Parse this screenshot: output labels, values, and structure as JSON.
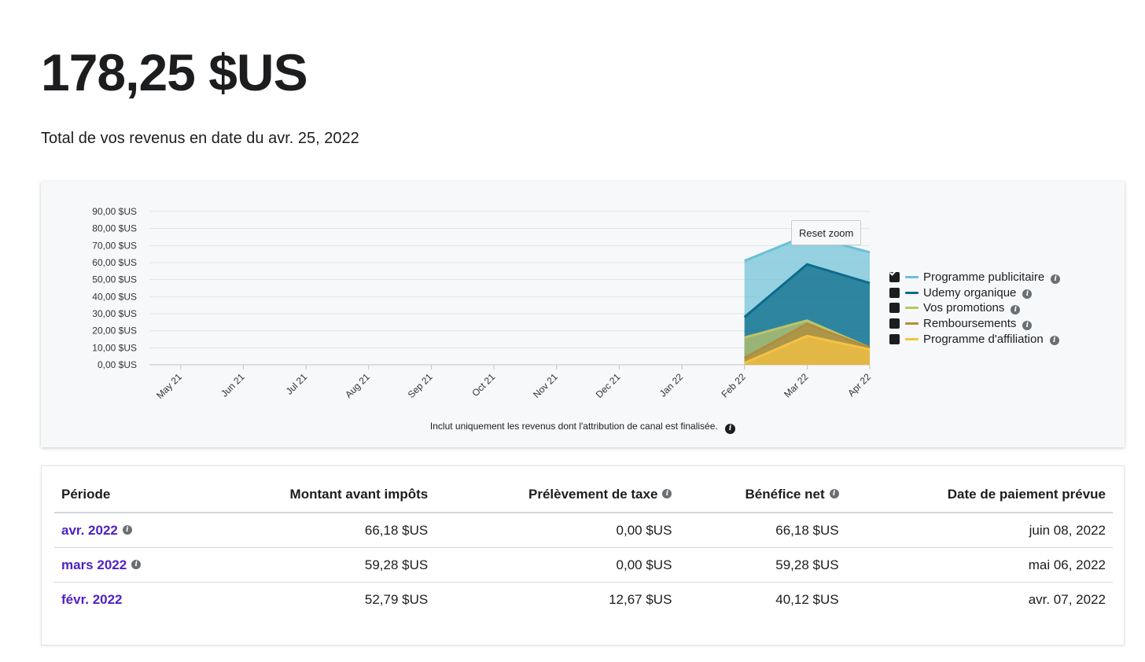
{
  "header": {
    "total": "178,25 $US",
    "subtitle": "Total de vos revenus en date du avr. 25, 2022"
  },
  "chart": {
    "reset_zoom_label": "Reset zoom",
    "footnote": "Inclut uniquement les revenus dont l'attribution de canal est finalisée.",
    "legend": [
      {
        "label": "Programme publicitaire",
        "color": "#6bc0d6"
      },
      {
        "label": "Udemy organique",
        "color": "#0c6b8a"
      },
      {
        "label": "Vos promotions",
        "color": "#bdc46a"
      },
      {
        "label": "Remboursements",
        "color": "#b38c3b"
      },
      {
        "label": "Programme d'affiliation",
        "color": "#f5c242"
      }
    ]
  },
  "chart_data": {
    "type": "area",
    "categories": [
      "May 21",
      "Jun 21",
      "Jul 21",
      "Aug 21",
      "Sep 21",
      "Oct 21",
      "Nov 21",
      "Dec 21",
      "Jan 22",
      "Feb 22",
      "Mar 22",
      "Apr 22"
    ],
    "y_ticks": [
      "0,00 $US",
      "10,00 $US",
      "20,00 $US",
      "30,00 $US",
      "40,00 $US",
      "50,00 $US",
      "60,00 $US",
      "70,00 $US",
      "80,00 $US",
      "90,00 $US"
    ],
    "ylim": [
      0,
      90
    ],
    "grid": true,
    "legend_position": "right",
    "series": [
      {
        "name": "Programme publicitaire",
        "color": "#6bc0d6",
        "values": [
          null,
          null,
          null,
          null,
          null,
          null,
          null,
          null,
          null,
          61,
          76,
          66
        ]
      },
      {
        "name": "Udemy organique",
        "color": "#0c6b8a",
        "values": [
          null,
          null,
          null,
          null,
          null,
          null,
          null,
          null,
          null,
          28,
          59,
          48
        ]
      },
      {
        "name": "Vos promotions",
        "color": "#bdc46a",
        "values": [
          null,
          null,
          null,
          null,
          null,
          null,
          null,
          null,
          null,
          16,
          26,
          10
        ]
      },
      {
        "name": "Remboursements",
        "color": "#b38c3b",
        "values": [
          null,
          null,
          null,
          null,
          null,
          null,
          null,
          null,
          null,
          4,
          24,
          10
        ]
      },
      {
        "name": "Programme d'affiliation",
        "color": "#f5c242",
        "values": [
          null,
          null,
          null,
          null,
          null,
          null,
          null,
          null,
          null,
          1,
          17,
          9
        ]
      }
    ]
  },
  "table": {
    "headers": {
      "period": "Période",
      "gross": "Montant avant impôts",
      "tax": "Prélèvement de taxe",
      "net": "Bénéfice net",
      "date": "Date de paiement prévue"
    },
    "rows": [
      {
        "period": "avr. 2022",
        "gross": "66,18 $US",
        "tax": "0,00 $US",
        "net": "66,18 $US",
        "date": "juin 08, 2022"
      },
      {
        "period": "mars 2022",
        "gross": "59,28 $US",
        "tax": "0,00 $US",
        "net": "59,28 $US",
        "date": "mai 06, 2022"
      },
      {
        "period": "févr. 2022",
        "gross": "52,79 $US",
        "tax": "12,67 $US",
        "net": "40,12 $US",
        "date": "avr. 07, 2022"
      }
    ]
  }
}
